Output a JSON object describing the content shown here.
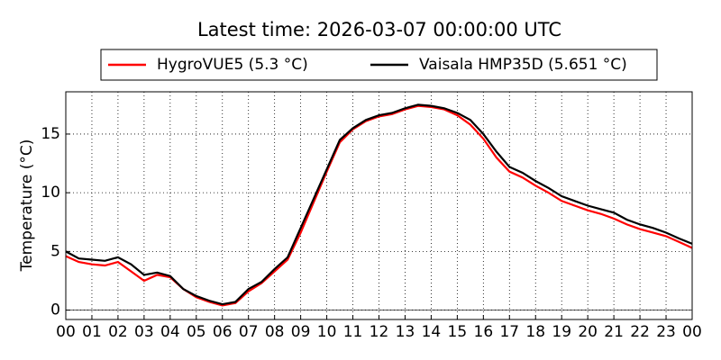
{
  "chart_data": {
    "type": "line",
    "title": "Latest time: 2026-03-07 00:00:00 UTC",
    "y_label": "Temperature (°C)",
    "x": [
      0,
      0.5,
      1,
      1.5,
      2,
      2.5,
      3,
      3.5,
      4,
      4.5,
      5,
      5.5,
      6,
      6.5,
      7,
      7.5,
      8,
      8.5,
      9,
      9.5,
      10,
      10.5,
      11,
      11.5,
      12,
      12.5,
      13,
      13.5,
      14,
      14.5,
      15,
      15.5,
      16,
      16.5,
      17,
      17.5,
      18,
      18.5,
      19,
      19.5,
      20,
      20.5,
      21,
      21.5,
      22,
      22.5,
      23,
      23.5,
      24
    ],
    "series": [
      {
        "name": "HygroVUE5 (5.3 °C)",
        "color": "#ff0000",
        "values": [
          4.6,
          4.1,
          3.9,
          3.8,
          4.1,
          3.3,
          2.5,
          3.0,
          2.8,
          1.8,
          1.1,
          0.7,
          0.4,
          0.6,
          1.6,
          2.3,
          3.3,
          4.3,
          6.6,
          9.2,
          11.8,
          14.3,
          15.4,
          16.1,
          16.5,
          16.7,
          17.1,
          17.4,
          17.3,
          17.1,
          16.6,
          15.8,
          14.6,
          13.0,
          11.8,
          11.3,
          10.6,
          10.0,
          9.3,
          8.9,
          8.5,
          8.2,
          7.8,
          7.3,
          6.9,
          6.6,
          6.3,
          5.8,
          5.3
        ]
      },
      {
        "name": "Vaisala HMP35D (5.651 °C)",
        "color": "#000000",
        "values": [
          5.0,
          4.4,
          4.3,
          4.2,
          4.5,
          3.9,
          3.0,
          3.2,
          2.9,
          1.8,
          1.2,
          0.8,
          0.5,
          0.7,
          1.8,
          2.4,
          3.5,
          4.5,
          7.0,
          9.5,
          12.0,
          14.5,
          15.5,
          16.2,
          16.6,
          16.8,
          17.2,
          17.5,
          17.4,
          17.2,
          16.8,
          16.2,
          15.0,
          13.5,
          12.2,
          11.7,
          11.0,
          10.4,
          9.7,
          9.3,
          8.9,
          8.6,
          8.3,
          7.7,
          7.3,
          7.0,
          6.6,
          6.1,
          5.65
        ]
      }
    ],
    "xlim": [
      0,
      24
    ],
    "xticks": [
      {
        "value": 0,
        "label": "00"
      },
      {
        "value": 1,
        "label": "01"
      },
      {
        "value": 2,
        "label": "02"
      },
      {
        "value": 3,
        "label": "03"
      },
      {
        "value": 4,
        "label": "04"
      },
      {
        "value": 5,
        "label": "05"
      },
      {
        "value": 6,
        "label": "06"
      },
      {
        "value": 7,
        "label": "07"
      },
      {
        "value": 8,
        "label": "08"
      },
      {
        "value": 9,
        "label": "09"
      },
      {
        "value": 10,
        "label": "10"
      },
      {
        "value": 11,
        "label": "11"
      },
      {
        "value": 12,
        "label": "12"
      },
      {
        "value": 13,
        "label": "13"
      },
      {
        "value": 14,
        "label": "14"
      },
      {
        "value": 15,
        "label": "15"
      },
      {
        "value": 16,
        "label": "16"
      },
      {
        "value": 17,
        "label": "17"
      },
      {
        "value": 18,
        "label": "18"
      },
      {
        "value": 19,
        "label": "19"
      },
      {
        "value": 20,
        "label": "20"
      },
      {
        "value": 21,
        "label": "21"
      },
      {
        "value": 22,
        "label": "22"
      },
      {
        "value": 23,
        "label": "23"
      },
      {
        "value": 24,
        "label": "00"
      }
    ],
    "ylim": [
      -0.8,
      18.6
    ],
    "yticks": [
      0,
      5,
      10,
      15
    ],
    "grid": true,
    "legend": "top"
  }
}
